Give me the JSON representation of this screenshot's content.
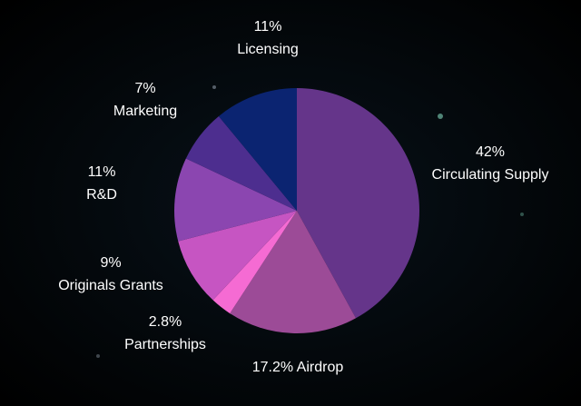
{
  "chart_data": {
    "type": "pie",
    "categories": [
      "Circulating Supply",
      "Airdrop",
      "Partnerships",
      "Originals Grants",
      "R&D",
      "Marketing",
      "Licensing"
    ],
    "values": [
      42,
      17.2,
      2.8,
      9,
      11,
      7,
      11
    ],
    "value_labels": [
      "42%",
      "17.2%",
      "2.8%",
      "9%",
      "11%",
      "7%",
      "11%"
    ],
    "colors": [
      "#65358a",
      "#9c4b97",
      "#f56bd3",
      "#c655c2",
      "#8b46b0",
      "#4d2e8f",
      "#0b2471"
    ]
  }
}
